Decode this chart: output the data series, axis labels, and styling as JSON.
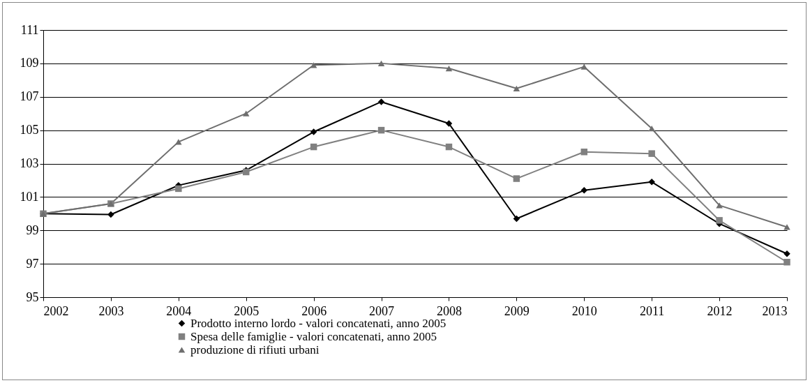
{
  "chart_data": {
    "type": "line",
    "x": [
      2002,
      2003,
      2004,
      2005,
      2006,
      2007,
      2008,
      2009,
      2010,
      2011,
      2012,
      2013
    ],
    "series": [
      {
        "name": "Prodotto interno lordo - valori concatenati, anno 2005",
        "color": "#000000",
        "marker": "diamond",
        "values": [
          100,
          99.95,
          101.7,
          102.6,
          104.9,
          106.7,
          105.4,
          99.7,
          101.4,
          101.9,
          99.4,
          97.6
        ]
      },
      {
        "name": "Spesa delle famiglie - valori concatenati, anno 2005",
        "color": "#808080",
        "marker": "square",
        "values": [
          100,
          100.6,
          101.5,
          102.5,
          104.0,
          105.0,
          104.0,
          102.1,
          103.7,
          103.6,
          99.6,
          97.1
        ]
      },
      {
        "name": "produzione di rifiuti urbani",
        "color": "#6e6e6e",
        "marker": "triangle",
        "values": [
          100,
          100.6,
          104.3,
          106.0,
          108.9,
          109.0,
          108.7,
          107.5,
          108.8,
          105.1,
          100.5,
          99.2
        ]
      }
    ],
    "xlim": [
      2002,
      2013
    ],
    "xticks": [
      2002,
      2003,
      2004,
      2005,
      2006,
      2007,
      2008,
      2009,
      2010,
      2011,
      2012,
      2013
    ],
    "ylim": [
      95,
      111
    ],
    "yticks": [
      95,
      97,
      99,
      101,
      103,
      105,
      107,
      109,
      111
    ],
    "grid": "y",
    "legend": "bottom"
  }
}
